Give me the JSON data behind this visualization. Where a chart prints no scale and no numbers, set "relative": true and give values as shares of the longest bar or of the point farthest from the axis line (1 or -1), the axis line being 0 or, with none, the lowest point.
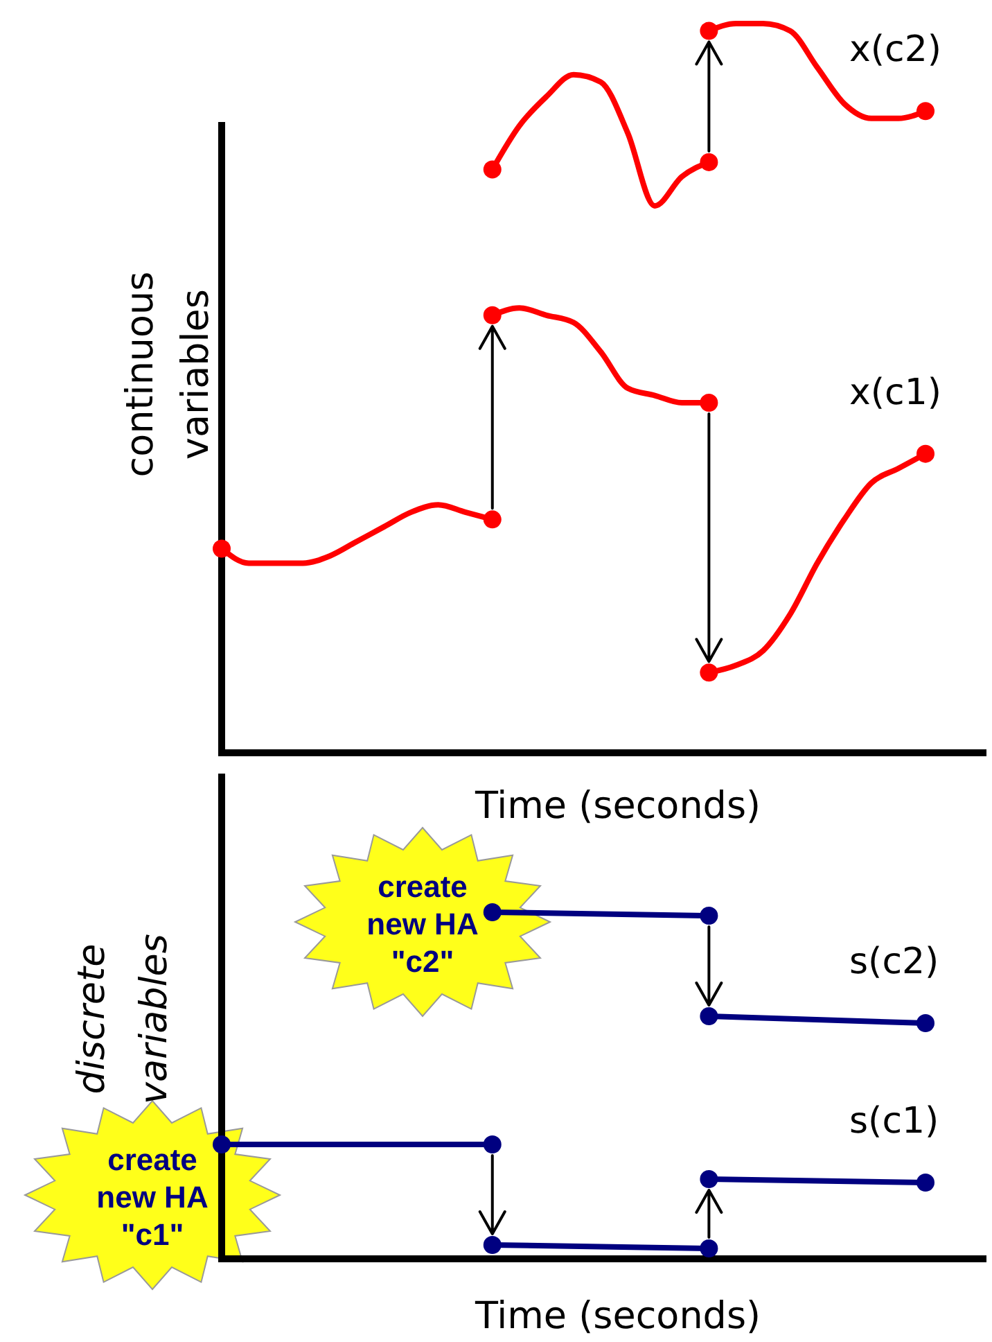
{
  "chart_data": [
    {
      "type": "line",
      "relative": true,
      "ylabel": "continuous variables",
      "xlabel": "Time (seconds)",
      "categories": [
        null,
        null,
        null,
        null,
        null,
        null,
        null,
        null,
        null,
        null,
        null,
        null,
        null,
        null,
        null,
        null,
        null,
        null,
        null,
        null,
        null,
        null,
        null,
        null,
        null,
        null,
        null
      ],
      "series": [
        {
          "color": "#ff0000",
          "values": [
            0.28,
            0.26,
            0.26,
            0.26,
            0.27,
            0.29,
            0.31,
            0.33,
            0.34,
            0.33,
            0.32,
            null,
            null,
            null,
            null,
            null,
            null,
            null,
            null,
            null,
            null,
            null,
            null,
            null,
            null,
            null,
            null
          ]
        },
        {
          "color": "#ff0000",
          "values": [
            null,
            null,
            null,
            null,
            null,
            null,
            null,
            null,
            null,
            null,
            0.6,
            0.61,
            0.6,
            0.59,
            0.55,
            0.5,
            0.49,
            0.48,
            0.48,
            null,
            null,
            null,
            null,
            null,
            null,
            null,
            null
          ]
        },
        {
          "name": "x(c1)",
          "color": "#ff0000",
          "values": [
            null,
            null,
            null,
            null,
            null,
            null,
            null,
            null,
            null,
            null,
            null,
            null,
            null,
            null,
            null,
            null,
            null,
            null,
            0.11,
            0.12,
            0.14,
            0.19,
            0.26,
            0.32,
            0.37,
            0.39,
            0.41
          ]
        },
        {
          "color": "#ff0000",
          "values": [
            null,
            null,
            null,
            null,
            null,
            null,
            null,
            null,
            null,
            null,
            0.8,
            0.86,
            0.9,
            0.93,
            0.92,
            0.85,
            0.75,
            0.79,
            0.81,
            null,
            null,
            null,
            null,
            null,
            null,
            null,
            null
          ]
        },
        {
          "name": "x(c2)",
          "color": "#ff0000",
          "values": [
            null,
            null,
            null,
            null,
            null,
            null,
            null,
            null,
            null,
            null,
            null,
            null,
            null,
            null,
            null,
            null,
            null,
            null,
            0.99,
            1,
            1,
            0.99,
            0.94,
            0.89,
            0.87,
            0.87,
            0.88
          ]
        }
      ]
    },
    {
      "type": "line",
      "relative": true,
      "ylabel": "discrete variables",
      "xlabel": "Time (seconds)",
      "marker": "circle",
      "categories": [
        null,
        null,
        null,
        null,
        null,
        null,
        null,
        null,
        null,
        null,
        null,
        null,
        null,
        null,
        null,
        null,
        null,
        null,
        null,
        null,
        null,
        null,
        null,
        null,
        null,
        null,
        null
      ],
      "annotations": [
        "create new HA \"c2\"",
        "create new HA \"c1\""
      ],
      "series": [
        {
          "color": "#000080",
          "values": [
            0.33,
            null,
            null,
            null,
            null,
            null,
            null,
            null,
            null,
            null,
            0.33,
            null,
            null,
            null,
            null,
            null,
            null,
            null,
            null,
            null,
            null,
            null,
            null,
            null,
            null,
            null,
            null
          ]
        },
        {
          "color": "#000080",
          "values": [
            null,
            null,
            null,
            null,
            null,
            null,
            null,
            null,
            null,
            null,
            0.04,
            null,
            null,
            null,
            null,
            null,
            null,
            null,
            0.03,
            null,
            null,
            null,
            null,
            null,
            null,
            null,
            null
          ]
        },
        {
          "name": "s(c1)",
          "color": "#000080",
          "values": [
            null,
            null,
            null,
            null,
            null,
            null,
            null,
            null,
            null,
            null,
            null,
            null,
            null,
            null,
            null,
            null,
            null,
            null,
            0.23,
            null,
            null,
            null,
            null,
            null,
            null,
            null,
            0.22
          ]
        },
        {
          "color": "#000080",
          "values": [
            null,
            null,
            null,
            null,
            null,
            null,
            null,
            null,
            null,
            null,
            1,
            null,
            null,
            null,
            null,
            null,
            null,
            null,
            0.99,
            null,
            null,
            null,
            null,
            null,
            null,
            null,
            null
          ]
        },
        {
          "name": "s(c2)",
          "color": "#000080",
          "values": [
            null,
            null,
            null,
            null,
            null,
            null,
            null,
            null,
            null,
            null,
            null,
            null,
            null,
            null,
            null,
            null,
            null,
            null,
            0.7,
            null,
            null,
            null,
            null,
            null,
            null,
            null,
            0.68
          ]
        }
      ]
    }
  ]
}
